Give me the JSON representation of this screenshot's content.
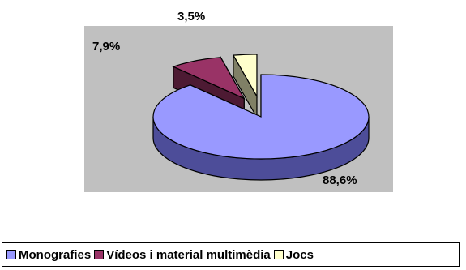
{
  "chart_data": {
    "type": "pie",
    "title": "",
    "categories": [
      "Monografies",
      "Vídeos i material multimèdia",
      "Jocs"
    ],
    "values": [
      88.6,
      7.9,
      3.5
    ],
    "data_labels": [
      "88,6%",
      "7,9%",
      "3,5%"
    ],
    "colors": [
      "#9999ff",
      "#993366",
      "#ffffcc"
    ],
    "side_colors": [
      "#4d4d99",
      "#4d1a33",
      "#808066"
    ],
    "style": "3d-exploded",
    "legend_position": "bottom"
  }
}
